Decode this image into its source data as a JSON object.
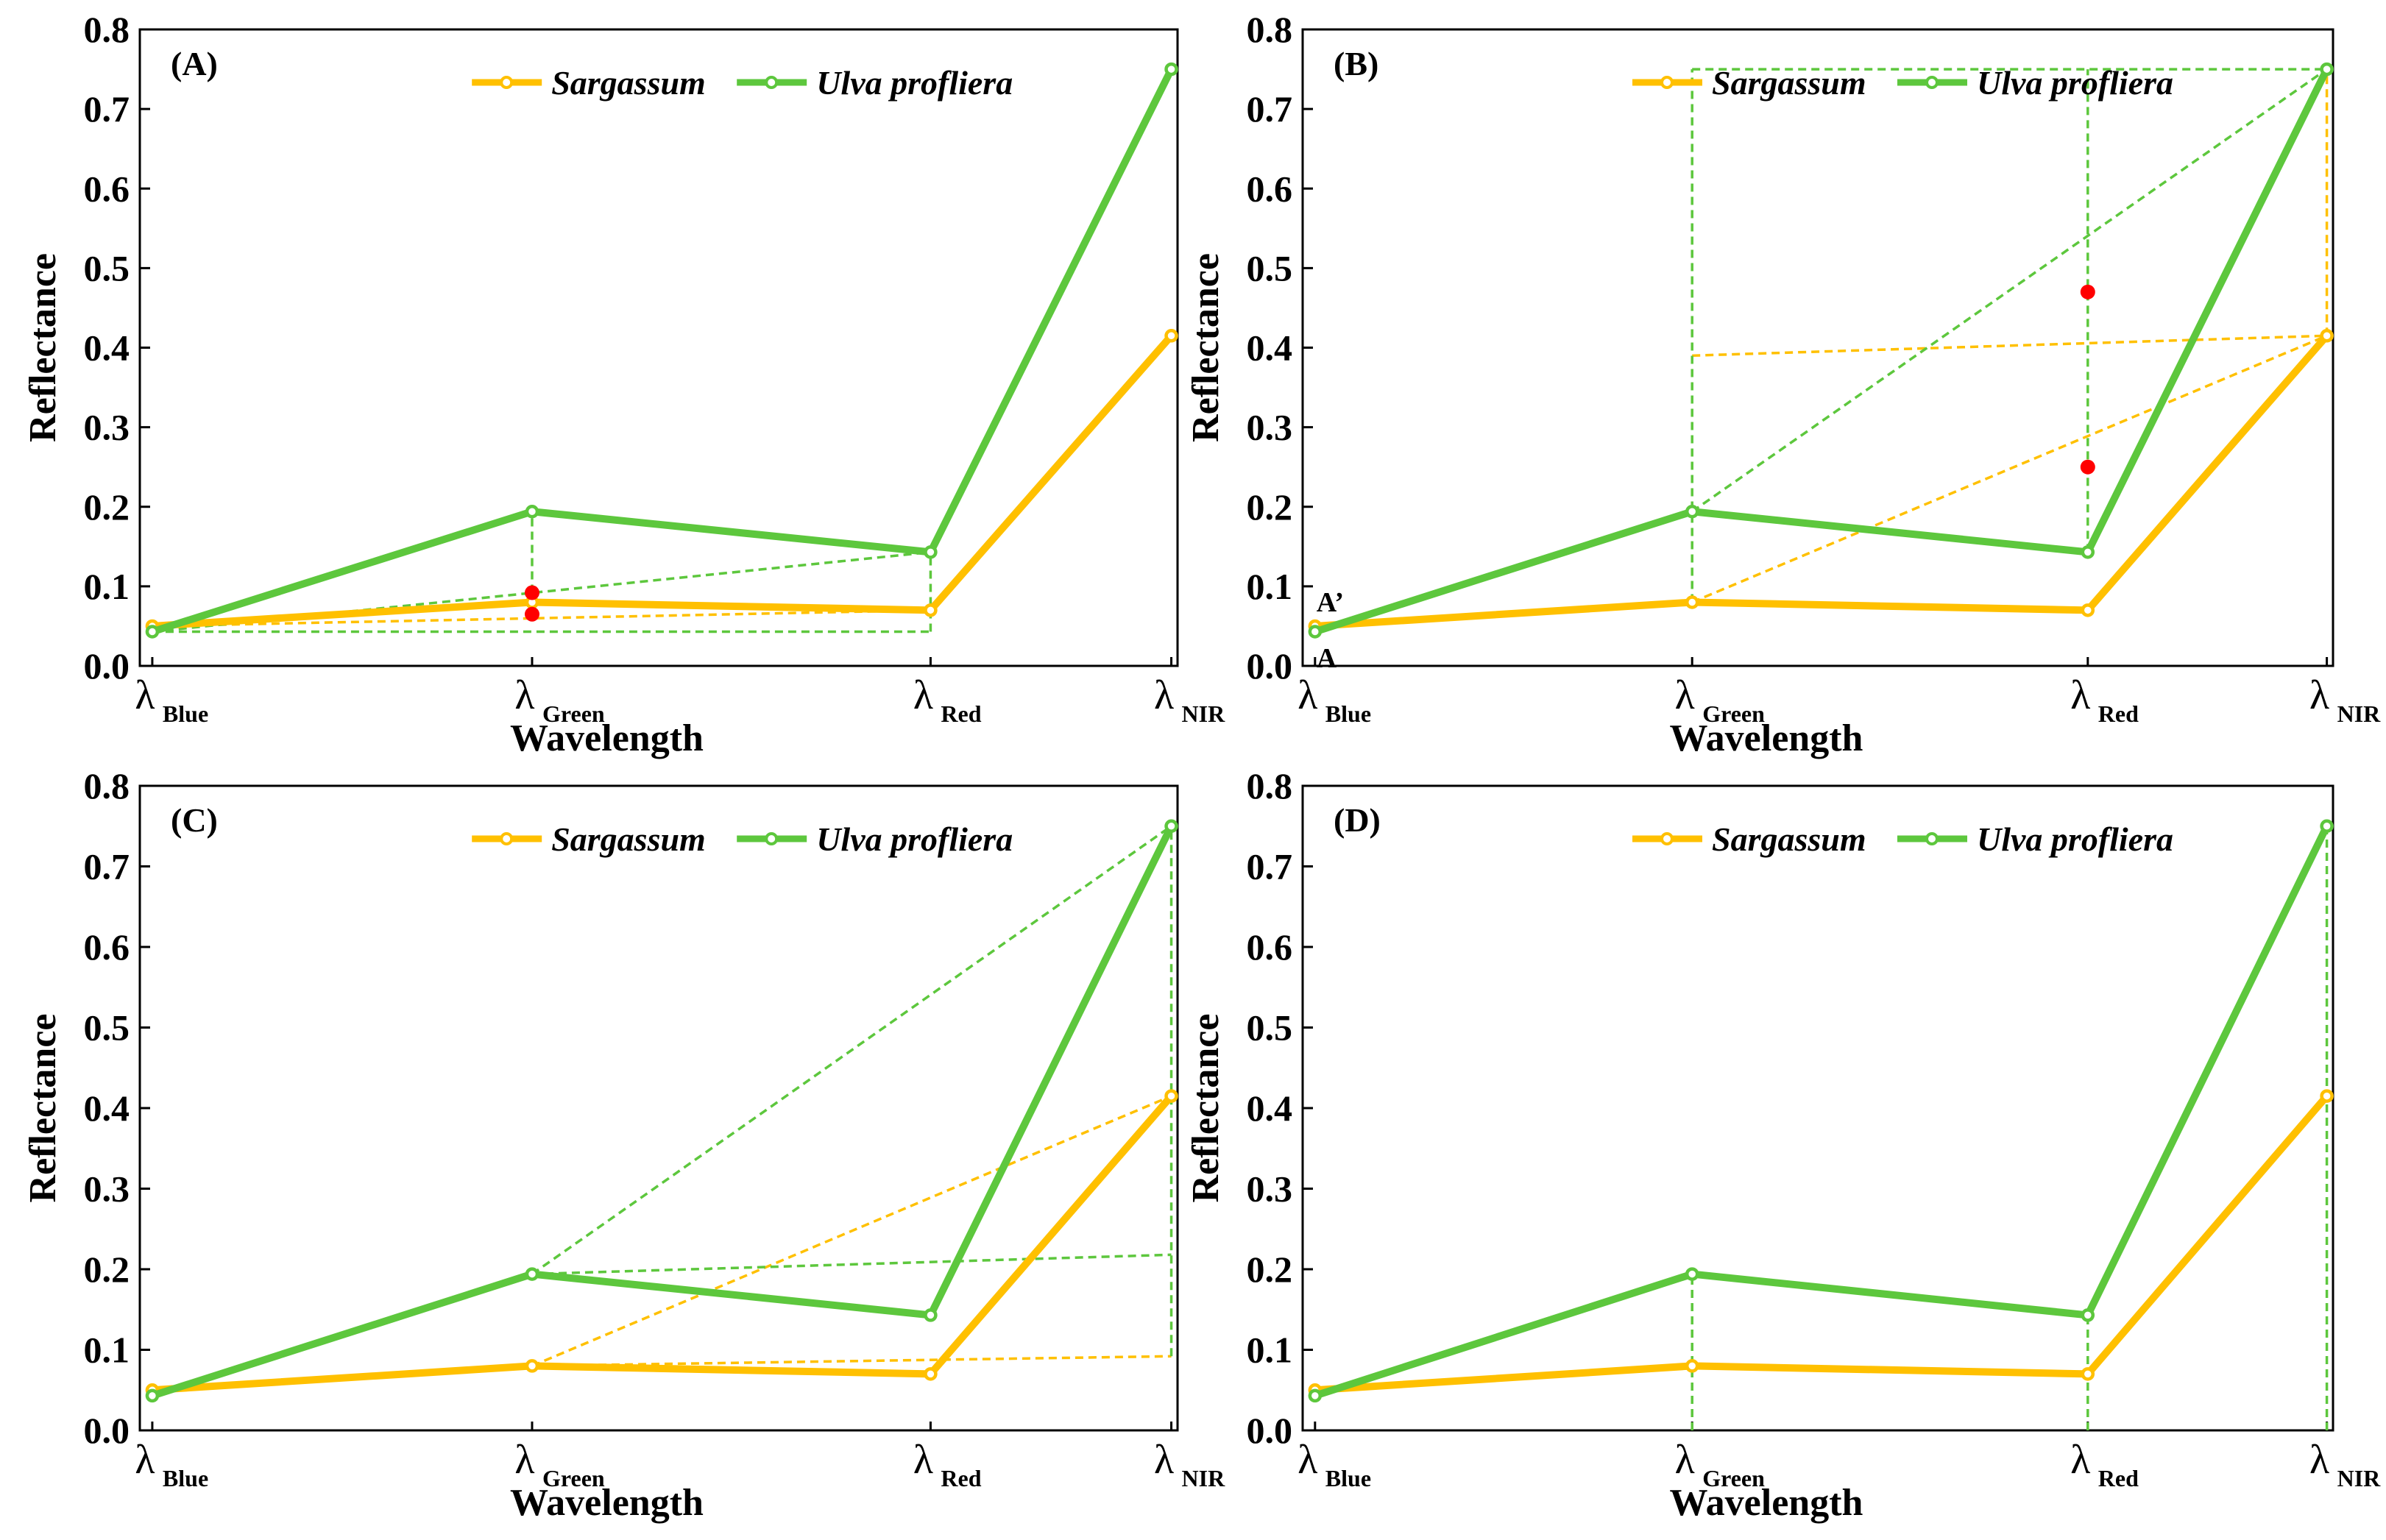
{
  "colors": {
    "sargassum": "#FFC000",
    "ulva": "#5DC73D",
    "marker": "#FF0000",
    "axis": "#000000"
  },
  "chart_data": [
    {
      "id": "A",
      "type": "line",
      "panel_label": "(A)",
      "xlabel": "Wavelength",
      "ylabel": "Reflectance",
      "ylim": [
        0,
        0.8
      ],
      "yticks": [
        "0.0",
        "0.1",
        "0.2",
        "0.3",
        "0.4",
        "0.5",
        "0.6",
        "0.7",
        "0.8"
      ],
      "xticks": [
        {
          "lam": "λ",
          "sub": "Blue"
        },
        {
          "lam": "λ",
          "sub": "Green"
        },
        {
          "lam": "λ",
          "sub": "Red"
        },
        {
          "lam": "λ",
          "sub": "NIR"
        }
      ],
      "series": [
        {
          "name": "Sargassum",
          "color_key": "sargassum",
          "values": [
            0.05,
            0.08,
            0.07,
            0.415
          ]
        },
        {
          "name": "Ulva profliera",
          "color_key": "ulva",
          "values": [
            0.043,
            0.194,
            0.143,
            0.75
          ]
        }
      ],
      "guides": [
        {
          "color_key": "sargassum",
          "from": [
            0,
            0.05
          ],
          "to": [
            2,
            0.07
          ]
        },
        {
          "color_key": "ulva",
          "from": [
            0,
            0.043
          ],
          "to": [
            2,
            0.143
          ]
        },
        {
          "color_key": "ulva",
          "from": [
            0,
            0.043
          ],
          "to": [
            2,
            0.043
          ]
        },
        {
          "color_key": "ulva",
          "from": [
            1,
            0.092
          ],
          "to": [
            1,
            0.194
          ]
        },
        {
          "color_key": "ulva",
          "from": [
            2,
            0.043
          ],
          "to": [
            2,
            0.143
          ]
        }
      ],
      "markers": [
        [
          1,
          0.092
        ],
        [
          1,
          0.065
        ]
      ],
      "legend": "top"
    },
    {
      "id": "B",
      "type": "line",
      "panel_label": "(B)",
      "xlabel": "Wavelength",
      "ylabel": "Reflectance",
      "ylim": [
        0,
        0.8
      ],
      "yticks": [
        "0.0",
        "0.1",
        "0.2",
        "0.3",
        "0.4",
        "0.5",
        "0.6",
        "0.7",
        "0.8"
      ],
      "xticks": [
        {
          "lam": "λ",
          "sub": "Blue"
        },
        {
          "lam": "λ",
          "sub": "Green"
        },
        {
          "lam": "λ",
          "sub": "Red"
        },
        {
          "lam": "λ",
          "sub": "NIR"
        }
      ],
      "series": [
        {
          "name": "Sargassum",
          "color_key": "sargassum",
          "values": [
            0.05,
            0.08,
            0.07,
            0.415
          ]
        },
        {
          "name": "Ulva profliera",
          "color_key": "ulva",
          "values": [
            0.043,
            0.194,
            0.143,
            0.75
          ]
        }
      ],
      "guides": [
        {
          "color_key": "sargassum",
          "from": [
            1,
            0.08
          ],
          "to": [
            3,
            0.415
          ]
        },
        {
          "color_key": "sargassum",
          "from": [
            1,
            0.39
          ],
          "to": [
            3,
            0.415
          ]
        },
        {
          "color_key": "sargassum",
          "from": [
            3,
            0.415
          ],
          "to": [
            3,
            0.75
          ]
        },
        {
          "color_key": "ulva",
          "from": [
            1,
            0.194
          ],
          "to": [
            3,
            0.75
          ]
        },
        {
          "color_key": "ulva",
          "from": [
            1,
            0.08
          ],
          "to": [
            1,
            0.75
          ]
        },
        {
          "color_key": "ulva",
          "from": [
            2,
            0.143
          ],
          "to": [
            2,
            0.75
          ]
        },
        {
          "color_key": "ulva",
          "from": [
            1,
            0.75
          ],
          "to": [
            3,
            0.75
          ]
        }
      ],
      "markers": [
        [
          2,
          0.47
        ],
        [
          2,
          0.25
        ]
      ],
      "annotations": [
        {
          "text": "A’",
          "x": 0,
          "y": 0.05
        },
        {
          "text": "A",
          "x": 0,
          "y": 0.0
        }
      ],
      "legend": "top"
    },
    {
      "id": "C",
      "type": "line",
      "panel_label": "(C)",
      "xlabel": "Wavelength",
      "ylabel": "Reflectance",
      "ylim": [
        0,
        0.8
      ],
      "yticks": [
        "0.0",
        "0.1",
        "0.2",
        "0.3",
        "0.4",
        "0.5",
        "0.6",
        "0.7",
        "0.8"
      ],
      "xticks": [
        {
          "lam": "λ",
          "sub": "Blue"
        },
        {
          "lam": "λ",
          "sub": "Green"
        },
        {
          "lam": "λ",
          "sub": "Red"
        },
        {
          "lam": "λ",
          "sub": "NIR"
        }
      ],
      "series": [
        {
          "name": "Sargassum",
          "color_key": "sargassum",
          "values": [
            0.05,
            0.08,
            0.07,
            0.415
          ]
        },
        {
          "name": "Ulva profliera",
          "color_key": "ulva",
          "values": [
            0.043,
            0.194,
            0.143,
            0.75
          ]
        }
      ],
      "guides": [
        {
          "color_key": "sargassum",
          "from": [
            1,
            0.08
          ],
          "to": [
            3,
            0.415
          ]
        },
        {
          "color_key": "sargassum",
          "from": [
            1,
            0.08
          ],
          "to": [
            3,
            0.092
          ]
        },
        {
          "color_key": "ulva",
          "from": [
            1,
            0.194
          ],
          "to": [
            3,
            0.75
          ]
        },
        {
          "color_key": "ulva",
          "from": [
            1,
            0.194
          ],
          "to": [
            3,
            0.218
          ]
        },
        {
          "color_key": "ulva",
          "from": [
            3,
            0.092
          ],
          "to": [
            3,
            0.75
          ]
        }
      ],
      "markers": [],
      "legend": "top"
    },
    {
      "id": "D",
      "type": "line",
      "panel_label": "(D)",
      "xlabel": "Wavelength",
      "ylabel": "Reflectance",
      "ylim": [
        0,
        0.8
      ],
      "yticks": [
        "0.0",
        "0.1",
        "0.2",
        "0.3",
        "0.4",
        "0.5",
        "0.6",
        "0.7",
        "0.8"
      ],
      "xticks": [
        {
          "lam": "λ",
          "sub": "Blue"
        },
        {
          "lam": "λ",
          "sub": "Green"
        },
        {
          "lam": "λ",
          "sub": "Red"
        },
        {
          "lam": "λ",
          "sub": "NIR"
        }
      ],
      "series": [
        {
          "name": "Sargassum",
          "color_key": "sargassum",
          "values": [
            0.05,
            0.08,
            0.07,
            0.415
          ]
        },
        {
          "name": "Ulva profliera",
          "color_key": "ulva",
          "values": [
            0.043,
            0.194,
            0.143,
            0.75
          ]
        }
      ],
      "guides": [
        {
          "color_key": "ulva",
          "from": [
            1,
            0.0
          ],
          "to": [
            1,
            0.194
          ]
        },
        {
          "color_key": "ulva",
          "from": [
            2,
            0.0
          ],
          "to": [
            2,
            0.143
          ]
        },
        {
          "color_key": "ulva",
          "from": [
            3,
            0.0
          ],
          "to": [
            3,
            0.75
          ]
        }
      ],
      "markers": [],
      "legend": "top"
    }
  ]
}
